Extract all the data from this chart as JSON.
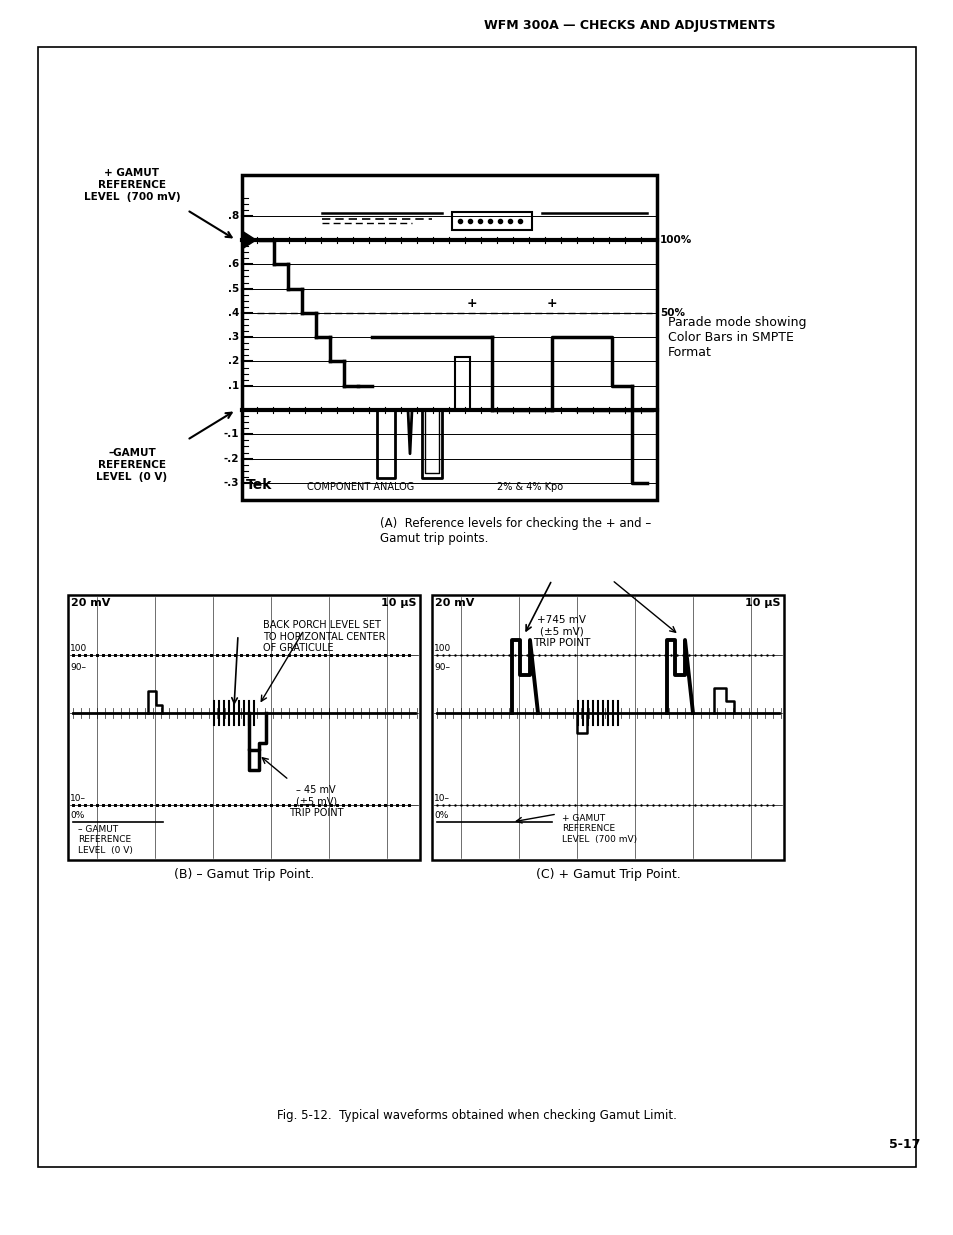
{
  "page_title": "WFM 300A — CHECKS AND ADJUSTMENTS",
  "page_number": "5-17",
  "fig_caption": "Fig. 5-12.  Typical waveforms obtained when checking Gamut Limit.",
  "caption_A": "(A)  Reference levels for checking the + and –\nGamut trip points.",
  "caption_B": "(B) – Gamut Trip Point.",
  "caption_C": "(C) + Gamut Trip Point.",
  "label_plus_gamut": "+ GAMUT\nREFERENCE\nLEVEL  (700 mV)",
  "label_minus_gamut": "–GAMUT\nREFERENCE\nLEVEL  (0 V)",
  "label_parade": "Parade mode showing\nColor Bars in SMPTE\nFormat",
  "label_B_20mv": "20 mV",
  "label_B_10us": "10 μS",
  "label_B_back_porch": "BACK PORCH LEVEL SET\nTO HORIZONTAL CENTER\nOF GRATICULE",
  "label_B_minus_gamut_ref": "– GAMUT\nREFERENCE\nLEVEL  (0 V)",
  "label_B_minus45mv": "– 45 mV\n(±5 mV)\nTRIP POINT",
  "label_C_20mv": "20 mV",
  "label_C_10us": "10 μS",
  "label_C_745mv": "+745 mV\n(±5 mV)\nTRIP POINT",
  "label_C_plus_gamut_ref": "+ GAMUT\nREFERENCE\nLEVEL  (700 mV)",
  "bg_color": "#ffffff"
}
